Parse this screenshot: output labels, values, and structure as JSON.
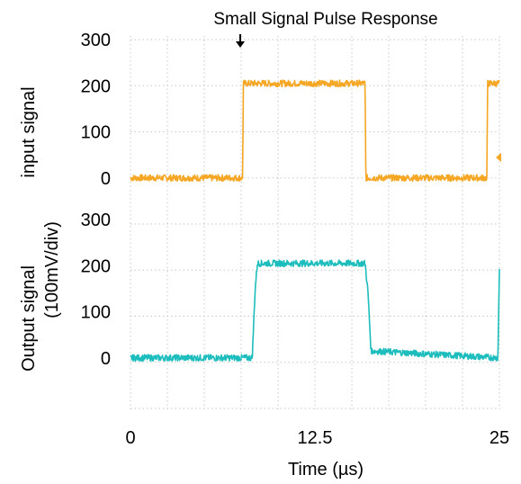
{
  "chart_data": {
    "type": "line",
    "title": "Small Signal Pulse Response",
    "xlabel": "Time (µs)",
    "xlim": [
      0,
      25
    ],
    "x_ticks": [
      "0",
      "12.5",
      "25"
    ],
    "grid": true,
    "panels": [
      {
        "name": "input",
        "ylabel_lines": [
          "input signal"
        ],
        "ylim": [
          -50,
          300
        ],
        "y_ticks": [
          "300",
          "200",
          "100",
          "0"
        ],
        "series": [
          {
            "color": "#F5A623",
            "x": [
              0,
              7.6,
              7.65,
              15.9,
              15.95,
              24.15,
              24.2,
              25
            ],
            "y": [
              0,
              0,
              205,
              205,
              0,
              0,
              205,
              205
            ]
          }
        ]
      },
      {
        "name": "output",
        "ylabel_lines": [
          "Output signal",
          "(100mV/div)"
        ],
        "ylim": [
          -50,
          300
        ],
        "y_ticks": [
          "300",
          "200",
          "100",
          "0"
        ],
        "series": [
          {
            "color": "#1DBDBD",
            "x": [
              0,
              8.25,
              8.45,
              8.6,
              15.9,
              16.1,
              16.3,
              24.9,
              25
            ],
            "y": [
              0,
              0,
              150,
              205,
              205,
              140,
              15,
              0,
              195
            ]
          }
        ]
      }
    ],
    "trigger_marker": "down-arrow"
  }
}
